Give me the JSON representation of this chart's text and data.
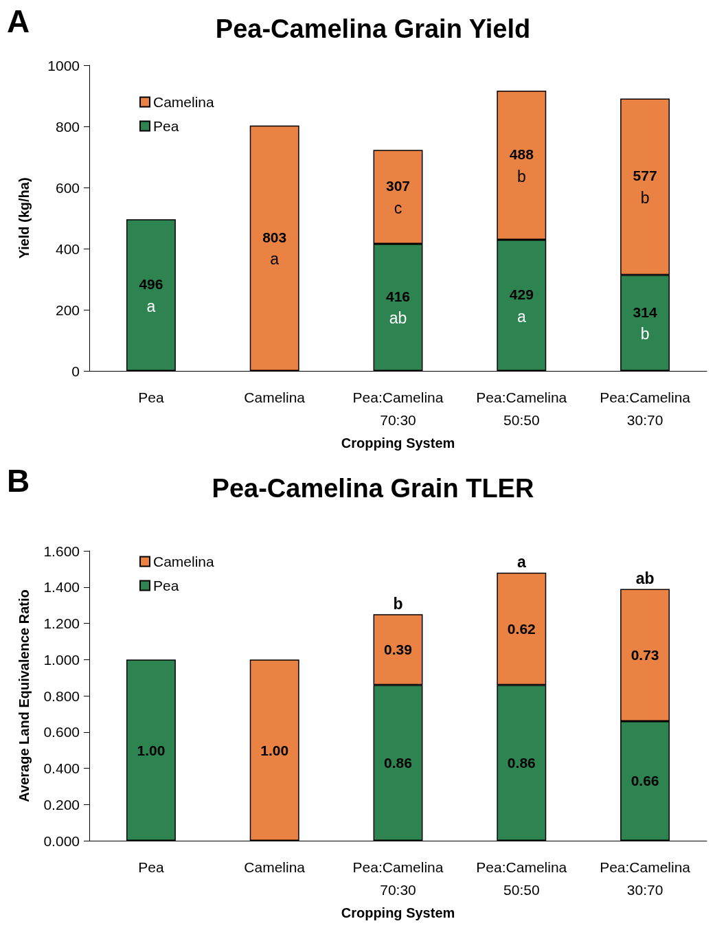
{
  "chart_data": [
    {
      "type": "bar",
      "stacked": true,
      "title": "Pea-Camelina Grain Yield",
      "annotations": [
        "A"
      ],
      "xlabel": "Cropping System",
      "ylabel": "Yield (kg/ha)",
      "categories": [
        "Pea",
        "Camelina",
        "Pea:Camelina\n70:30",
        "Pea:Camelina\n50:50",
        "Pea:Camelina\n30:70"
      ],
      "ylim": [
        0,
        1000
      ],
      "yticks": [
        0,
        200,
        400,
        600,
        800,
        1000
      ],
      "legend": "top left",
      "series": [
        {
          "name": "Pea",
          "color": "#2e8450",
          "values": [
            496,
            null,
            416,
            429,
            314
          ],
          "value_labels": [
            "496\na",
            null,
            "416\nab",
            "429\na",
            "314\nb"
          ]
        },
        {
          "name": "Camelina",
          "color": "#ea8244",
          "values": [
            null,
            803,
            307,
            488,
            577
          ],
          "value_labels": [
            null,
            "803\na",
            "307\nc",
            "488\nb",
            "577\nb"
          ]
        }
      ]
    },
    {
      "type": "bar",
      "stacked": true,
      "title": "Pea-Camelina Grain TLER",
      "xlabel": "Cropping System",
      "ylabel": "Average Land Equivalence Ratio",
      "categories": [
        "Pea",
        "Camelina",
        "Pea:Camelina\n70:30",
        "Pea:Camelina\n50:50",
        "Pea:Camelina\n30:70"
      ],
      "ylim": [
        0,
        1.6
      ],
      "yticks": [
        {
          "value": 0,
          "label": "0.000"
        },
        {
          "value": 0.2,
          "label": "0.200"
        },
        {
          "value": 0.4,
          "label": "0.400"
        },
        {
          "value": 0.6,
          "label": "0.600"
        },
        {
          "value": 0.8,
          "label": "0.800"
        },
        {
          "value": 1,
          "label": "1.000"
        },
        {
          "value": 1.2,
          "label": "1.200"
        },
        {
          "value": 1.4,
          "label": "1.400"
        },
        {
          "value": 1.6,
          "label": "1.600"
        }
      ],
      "legend": "top left",
      "annotations": [
        "B",
        {
          "text": "b",
          "x": "Pea:Camelina\n70:30",
          "y": 1.25
        },
        {
          "text": "a",
          "x": "Pea:Camelina\n50:50",
          "y": 1.48
        },
        {
          "text": "ab",
          "x": "Pea:Camelina\n30:70",
          "y": 1.39
        }
      ],
      "series": [
        {
          "name": "Pea",
          "color": "#2e8450",
          "values": [
            1,
            null,
            0.86,
            0.86,
            0.66
          ],
          "value_labels": [
            "1.00",
            null,
            "0.86",
            "0.86",
            "0.66"
          ]
        },
        {
          "name": "Camelina",
          "color": "#ea8244",
          "values": [
            null,
            1,
            0.39,
            0.62,
            0.73
          ],
          "value_labels": [
            null,
            "1.00",
            "0.39",
            "0.62",
            "0.73"
          ]
        }
      ]
    }
  ]
}
